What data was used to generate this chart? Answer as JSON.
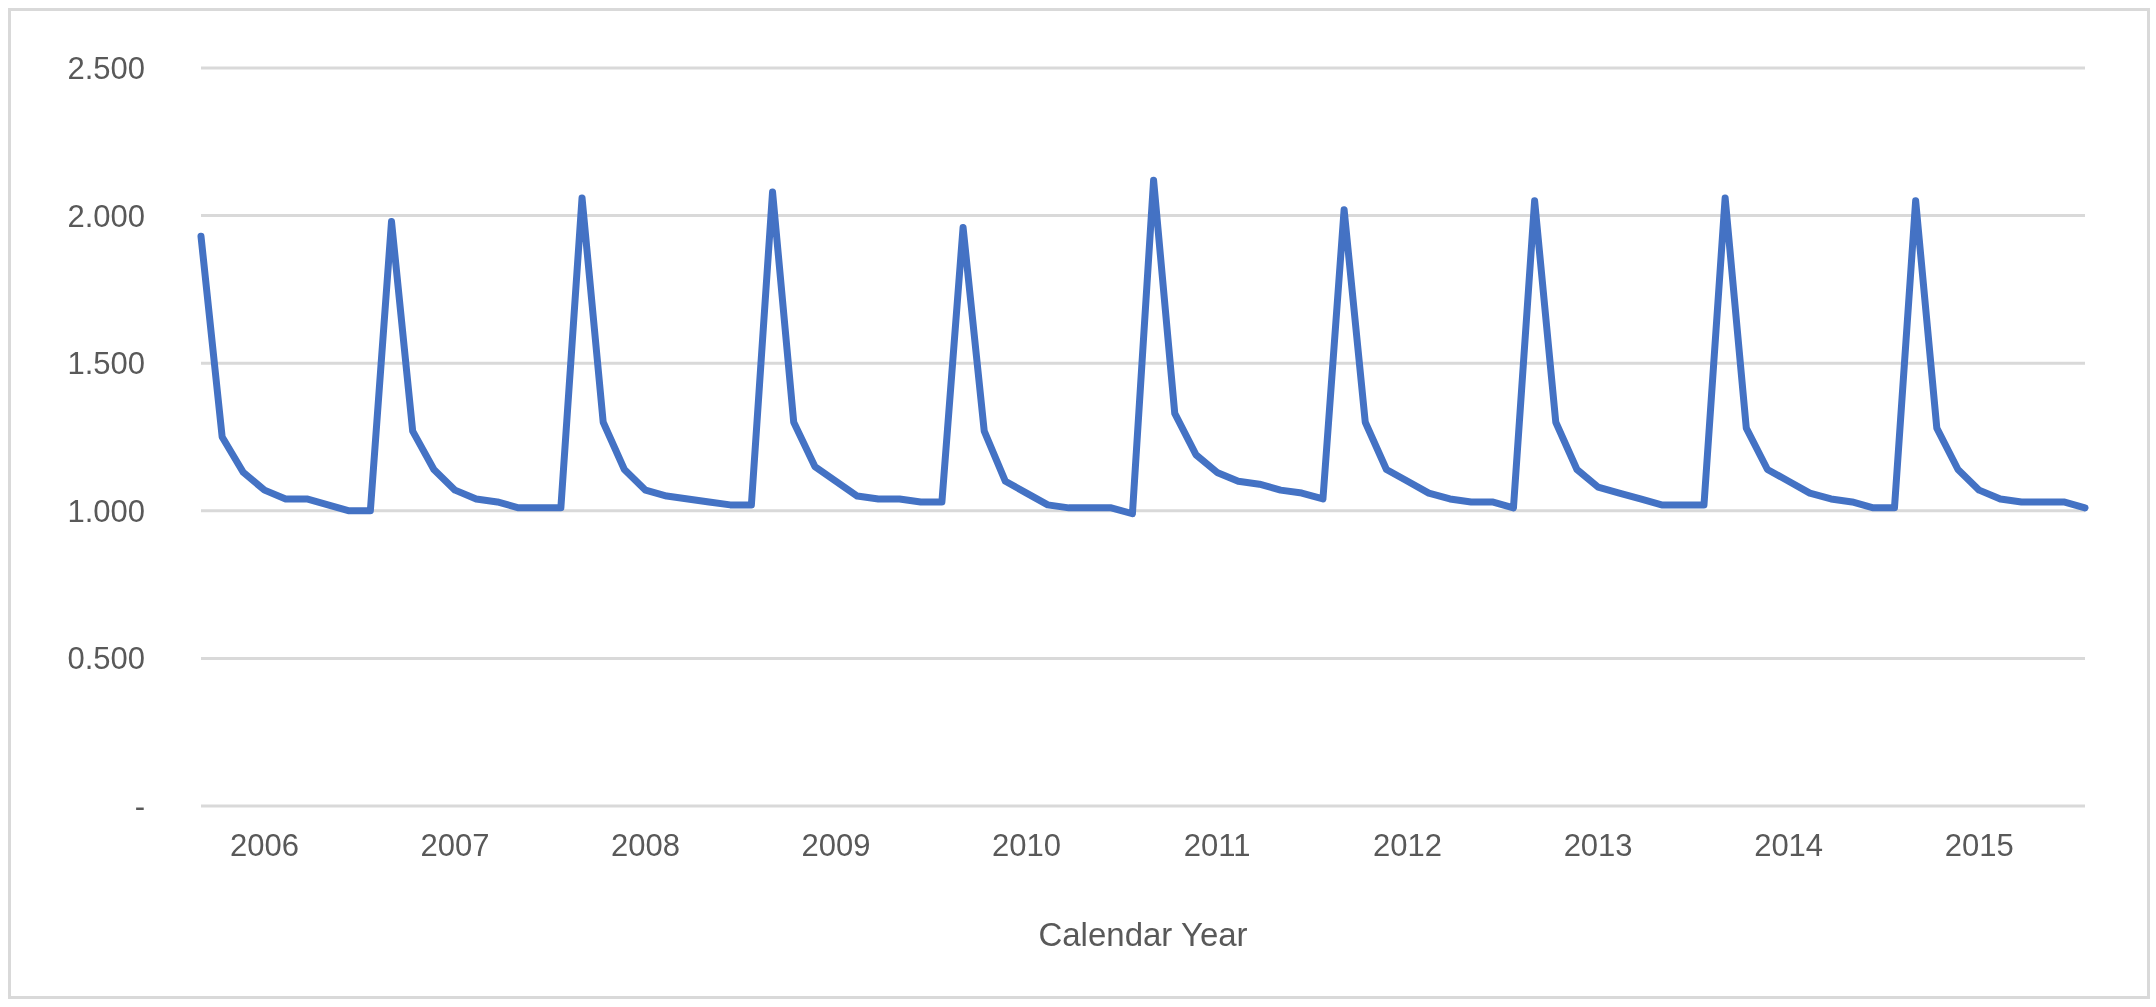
{
  "chart_data": {
    "type": "line",
    "xlabel": "Calendar Year",
    "categories": [
      null,
      null,
      null,
      "2006",
      null,
      null,
      null,
      null,
      null,
      null,
      null,
      null,
      "2007",
      null,
      null,
      null,
      null,
      null,
      null,
      null,
      null,
      "2008",
      null,
      null,
      null,
      null,
      null,
      null,
      null,
      null,
      "2009",
      null,
      null,
      null,
      null,
      null,
      null,
      null,
      null,
      "2010",
      null,
      null,
      null,
      null,
      null,
      null,
      null,
      null,
      "2011",
      null,
      null,
      null,
      null,
      null,
      null,
      null,
      null,
      "2012",
      null,
      null,
      null,
      null,
      null,
      null,
      null,
      null,
      "2013",
      null,
      null,
      null,
      null,
      null,
      null,
      null,
      null,
      "2014",
      null,
      null,
      null,
      null,
      null,
      null,
      null,
      null,
      "2015",
      null,
      null,
      null,
      null,
      null
    ],
    "series": [
      {
        "color": "#4472c4",
        "values": [
          1.93,
          1.25,
          1.13,
          1.07,
          1.04,
          1.04,
          1.02,
          1.0,
          1.0,
          1.98,
          1.27,
          1.14,
          1.07,
          1.04,
          1.03,
          1.01,
          1.01,
          1.01,
          2.06,
          1.3,
          1.14,
          1.07,
          1.05,
          1.04,
          1.03,
          1.02,
          1.02,
          2.08,
          1.3,
          1.15,
          1.1,
          1.05,
          1.04,
          1.04,
          1.03,
          1.03,
          1.96,
          1.27,
          1.1,
          1.06,
          1.02,
          1.01,
          1.01,
          1.01,
          0.99,
          2.12,
          1.33,
          1.19,
          1.13,
          1.1,
          1.09,
          1.07,
          1.06,
          1.04,
          2.02,
          1.3,
          1.14,
          1.1,
          1.06,
          1.04,
          1.03,
          1.03,
          1.01,
          2.05,
          1.3,
          1.14,
          1.08,
          1.06,
          1.04,
          1.02,
          1.02,
          1.02,
          2.06,
          1.28,
          1.14,
          1.1,
          1.06,
          1.04,
          1.03,
          1.01,
          1.01,
          2.05,
          1.28,
          1.14,
          1.07,
          1.04,
          1.03,
          1.03,
          1.03,
          1.01
        ]
      }
    ],
    "ylim": [
      0,
      2.5
    ],
    "yticks": [
      {
        "value": 0,
        "label": "-"
      },
      {
        "value": 0.5,
        "label": "0.500"
      },
      {
        "value": 1,
        "label": "1.000"
      },
      {
        "value": 1.5,
        "label": "1.500"
      },
      {
        "value": 2,
        "label": "2.000"
      },
      {
        "value": 2.5,
        "label": "2.500"
      }
    ],
    "grid": "y",
    "legend": false,
    "marker": "none",
    "line_style": "solid"
  }
}
